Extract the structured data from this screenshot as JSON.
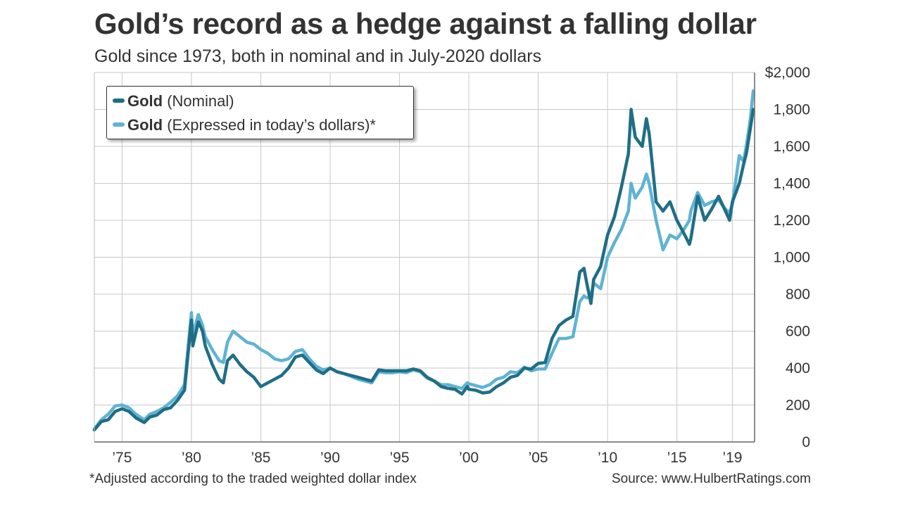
{
  "title": "Gold’s record as a hedge against a falling dollar",
  "subtitle": "Gold since 1973, both in nominal and in July-2020 dollars",
  "footnote": "*Adjusted according to the traded weighted dollar index",
  "source": "Source: www.HulbertRatings.com",
  "legend": [
    {
      "bold": "Gold",
      "rest": " (Nominal)",
      "color": "#1f6e86"
    },
    {
      "bold": "Gold",
      "rest": " (Expressed in today’s dollars)*",
      "color": "#5fb3d4"
    }
  ],
  "chart_data": {
    "type": "line",
    "xlim": [
      1973.0,
      2020.6
    ],
    "ylim": [
      0,
      2000
    ],
    "grid": true,
    "y_ticks": [
      0,
      200,
      400,
      600,
      800,
      1000,
      1200,
      1400,
      1600,
      1800,
      2000
    ],
    "y_tick_labels": [
      "0",
      "200",
      "400",
      "600",
      "800",
      "1,000",
      "1,200",
      "1,400",
      "1,600",
      "1,800",
      "$2,000"
    ],
    "x_ticks": [
      1975,
      1980,
      1985,
      1990,
      1995,
      2000,
      2005,
      2010,
      2015,
      2019
    ],
    "x_tick_labels": [
      "’75",
      "’80",
      "’85",
      "’90",
      "’95",
      "’00",
      "’05",
      "’10",
      "’15",
      "’19"
    ],
    "legend_position": "top-left",
    "series": [
      {
        "name": "Gold (Nominal)",
        "color": "#1f6e86",
        "points": [
          [
            1973.0,
            65
          ],
          [
            1973.5,
            110
          ],
          [
            1974.0,
            120
          ],
          [
            1974.5,
            165
          ],
          [
            1975.0,
            180
          ],
          [
            1975.5,
            165
          ],
          [
            1976.0,
            130
          ],
          [
            1976.6,
            105
          ],
          [
            1977.0,
            135
          ],
          [
            1977.5,
            145
          ],
          [
            1978.0,
            175
          ],
          [
            1978.5,
            185
          ],
          [
            1979.0,
            225
          ],
          [
            1979.5,
            280
          ],
          [
            1980.0,
            660
          ],
          [
            1980.1,
            520
          ],
          [
            1980.5,
            650
          ],
          [
            1980.8,
            600
          ],
          [
            1981.0,
            520
          ],
          [
            1981.5,
            420
          ],
          [
            1982.0,
            340
          ],
          [
            1982.3,
            320
          ],
          [
            1982.6,
            440
          ],
          [
            1983.0,
            470
          ],
          [
            1983.5,
            420
          ],
          [
            1984.0,
            380
          ],
          [
            1984.5,
            350
          ],
          [
            1985.0,
            300
          ],
          [
            1985.5,
            320
          ],
          [
            1986.0,
            340
          ],
          [
            1986.5,
            360
          ],
          [
            1987.0,
            400
          ],
          [
            1987.5,
            460
          ],
          [
            1988.0,
            470
          ],
          [
            1988.5,
            430
          ],
          [
            1989.0,
            390
          ],
          [
            1989.5,
            370
          ],
          [
            1990.0,
            400
          ],
          [
            1990.5,
            380
          ],
          [
            1991.0,
            370
          ],
          [
            1991.5,
            360
          ],
          [
            1992.0,
            350
          ],
          [
            1992.5,
            340
          ],
          [
            1993.0,
            330
          ],
          [
            1993.5,
            390
          ],
          [
            1994.0,
            385
          ],
          [
            1994.5,
            385
          ],
          [
            1995.0,
            385
          ],
          [
            1995.5,
            385
          ],
          [
            1996.0,
            395
          ],
          [
            1996.5,
            385
          ],
          [
            1997.0,
            350
          ],
          [
            1997.5,
            330
          ],
          [
            1998.0,
            300
          ],
          [
            1998.5,
            290
          ],
          [
            1999.0,
            285
          ],
          [
            1999.5,
            260
          ],
          [
            1999.9,
            300
          ],
          [
            2000.0,
            285
          ],
          [
            2000.5,
            280
          ],
          [
            2001.0,
            265
          ],
          [
            2001.5,
            270
          ],
          [
            2002.0,
            300
          ],
          [
            2002.5,
            320
          ],
          [
            2003.0,
            350
          ],
          [
            2003.5,
            360
          ],
          [
            2004.0,
            400
          ],
          [
            2004.5,
            395
          ],
          [
            2005.0,
            425
          ],
          [
            2005.5,
            430
          ],
          [
            2006.0,
            560
          ],
          [
            2006.5,
            630
          ],
          [
            2007.0,
            660
          ],
          [
            2007.5,
            680
          ],
          [
            2008.0,
            920
          ],
          [
            2008.3,
            940
          ],
          [
            2008.5,
            860
          ],
          [
            2008.8,
            750
          ],
          [
            2009.0,
            880
          ],
          [
            2009.5,
            950
          ],
          [
            2010.0,
            1120
          ],
          [
            2010.5,
            1220
          ],
          [
            2011.0,
            1380
          ],
          [
            2011.5,
            1560
          ],
          [
            2011.7,
            1800
          ],
          [
            2012.0,
            1650
          ],
          [
            2012.5,
            1600
          ],
          [
            2012.8,
            1750
          ],
          [
            2013.0,
            1670
          ],
          [
            2013.5,
            1300
          ],
          [
            2014.0,
            1250
          ],
          [
            2014.5,
            1300
          ],
          [
            2015.0,
            1200
          ],
          [
            2015.5,
            1130
          ],
          [
            2015.9,
            1070
          ],
          [
            2016.0,
            1100
          ],
          [
            2016.5,
            1330
          ],
          [
            2017.0,
            1200
          ],
          [
            2017.5,
            1260
          ],
          [
            2018.0,
            1330
          ],
          [
            2018.5,
            1250
          ],
          [
            2018.8,
            1200
          ],
          [
            2019.0,
            1300
          ],
          [
            2019.5,
            1400
          ],
          [
            2019.8,
            1500
          ],
          [
            2020.0,
            1560
          ],
          [
            2020.3,
            1700
          ],
          [
            2020.5,
            1800
          ]
        ]
      },
      {
        "name": "Gold (Expressed in today’s dollars)*",
        "color": "#5fb3d4",
        "points": [
          [
            1973.0,
            70
          ],
          [
            1973.5,
            120
          ],
          [
            1974.0,
            150
          ],
          [
            1974.5,
            195
          ],
          [
            1975.0,
            200
          ],
          [
            1975.5,
            185
          ],
          [
            1976.0,
            150
          ],
          [
            1976.6,
            120
          ],
          [
            1977.0,
            150
          ],
          [
            1977.5,
            165
          ],
          [
            1978.0,
            185
          ],
          [
            1978.5,
            215
          ],
          [
            1979.0,
            250
          ],
          [
            1979.5,
            310
          ],
          [
            1980.0,
            700
          ],
          [
            1980.1,
            580
          ],
          [
            1980.5,
            690
          ],
          [
            1980.8,
            630
          ],
          [
            1981.0,
            570
          ],
          [
            1981.5,
            500
          ],
          [
            1982.0,
            440
          ],
          [
            1982.3,
            430
          ],
          [
            1982.6,
            540
          ],
          [
            1983.0,
            600
          ],
          [
            1983.5,
            570
          ],
          [
            1984.0,
            540
          ],
          [
            1984.5,
            530
          ],
          [
            1985.0,
            500
          ],
          [
            1985.5,
            480
          ],
          [
            1986.0,
            450
          ],
          [
            1986.5,
            440
          ],
          [
            1987.0,
            450
          ],
          [
            1987.5,
            490
          ],
          [
            1988.0,
            500
          ],
          [
            1988.5,
            450
          ],
          [
            1989.0,
            410
          ],
          [
            1989.5,
            390
          ],
          [
            1990.0,
            400
          ],
          [
            1990.5,
            380
          ],
          [
            1991.0,
            370
          ],
          [
            1991.5,
            355
          ],
          [
            1992.0,
            340
          ],
          [
            1992.5,
            330
          ],
          [
            1993.0,
            320
          ],
          [
            1993.5,
            380
          ],
          [
            1994.0,
            375
          ],
          [
            1994.5,
            375
          ],
          [
            1995.0,
            380
          ],
          [
            1995.5,
            375
          ],
          [
            1996.0,
            390
          ],
          [
            1996.5,
            380
          ],
          [
            1997.0,
            345
          ],
          [
            1997.5,
            330
          ],
          [
            1998.0,
            310
          ],
          [
            1998.5,
            310
          ],
          [
            1999.0,
            300
          ],
          [
            1999.5,
            290
          ],
          [
            1999.9,
            320
          ],
          [
            2000.0,
            315
          ],
          [
            2000.5,
            305
          ],
          [
            2001.0,
            295
          ],
          [
            2001.5,
            310
          ],
          [
            2002.0,
            340
          ],
          [
            2002.5,
            350
          ],
          [
            2003.0,
            380
          ],
          [
            2003.5,
            375
          ],
          [
            2004.0,
            405
          ],
          [
            2004.5,
            385
          ],
          [
            2005.0,
            395
          ],
          [
            2005.5,
            395
          ],
          [
            2006.0,
            480
          ],
          [
            2006.5,
            560
          ],
          [
            2007.0,
            560
          ],
          [
            2007.5,
            570
          ],
          [
            2008.0,
            760
          ],
          [
            2008.3,
            790
          ],
          [
            2008.5,
            780
          ],
          [
            2008.8,
            790
          ],
          [
            2009.0,
            860
          ],
          [
            2009.5,
            830
          ],
          [
            2010.0,
            1000
          ],
          [
            2010.5,
            1080
          ],
          [
            2011.0,
            1150
          ],
          [
            2011.5,
            1250
          ],
          [
            2011.7,
            1400
          ],
          [
            2012.0,
            1320
          ],
          [
            2012.5,
            1380
          ],
          [
            2012.8,
            1450
          ],
          [
            2013.0,
            1400
          ],
          [
            2013.5,
            1200
          ],
          [
            2014.0,
            1040
          ],
          [
            2014.5,
            1120
          ],
          [
            2015.0,
            1100
          ],
          [
            2015.5,
            1150
          ],
          [
            2015.9,
            1200
          ],
          [
            2016.0,
            1250
          ],
          [
            2016.5,
            1350
          ],
          [
            2017.0,
            1280
          ],
          [
            2017.5,
            1300
          ],
          [
            2018.0,
            1310
          ],
          [
            2018.5,
            1260
          ],
          [
            2018.8,
            1240
          ],
          [
            2019.0,
            1290
          ],
          [
            2019.5,
            1550
          ],
          [
            2019.8,
            1520
          ],
          [
            2020.0,
            1600
          ],
          [
            2020.3,
            1750
          ],
          [
            2020.5,
            1900
          ]
        ]
      }
    ]
  }
}
